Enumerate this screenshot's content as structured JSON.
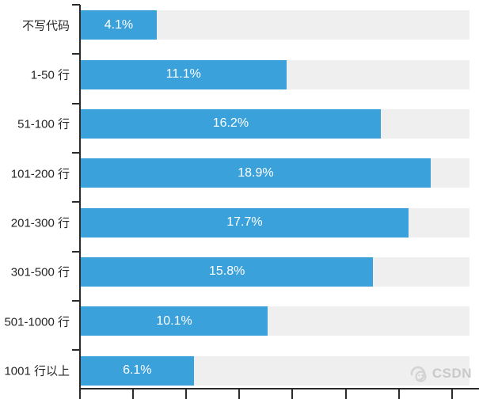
{
  "chart_data": {
    "type": "bar",
    "orientation": "horizontal",
    "title": "",
    "xlabel": "",
    "ylabel": "",
    "categories": [
      "不写代码",
      "1-50 行",
      "51-100 行",
      "101-200 行",
      "201-300 行",
      "301-500 行",
      "501-1000 行",
      "1001 行以上"
    ],
    "values": [
      4.1,
      11.1,
      16.2,
      18.9,
      17.7,
      15.8,
      10.1,
      6.1
    ],
    "value_labels": [
      "4.1%",
      "11.1%",
      "16.2%",
      "18.9%",
      "17.7%",
      "15.8%",
      "10.1%",
      "6.1%"
    ],
    "xlim": [
      0,
      21
    ],
    "x_tick_count": 8,
    "x_tick_labels_visible": false,
    "grid": false,
    "legend": "none",
    "bar_color": "#3BA1DB",
    "track_color": "#EFEFEF",
    "axis_color": "#2b2b2b",
    "value_label_color": "#ffffff",
    "category_label_color": "#262626"
  },
  "watermark": {
    "text": "CSDN",
    "color": "#c9c9c9"
  }
}
